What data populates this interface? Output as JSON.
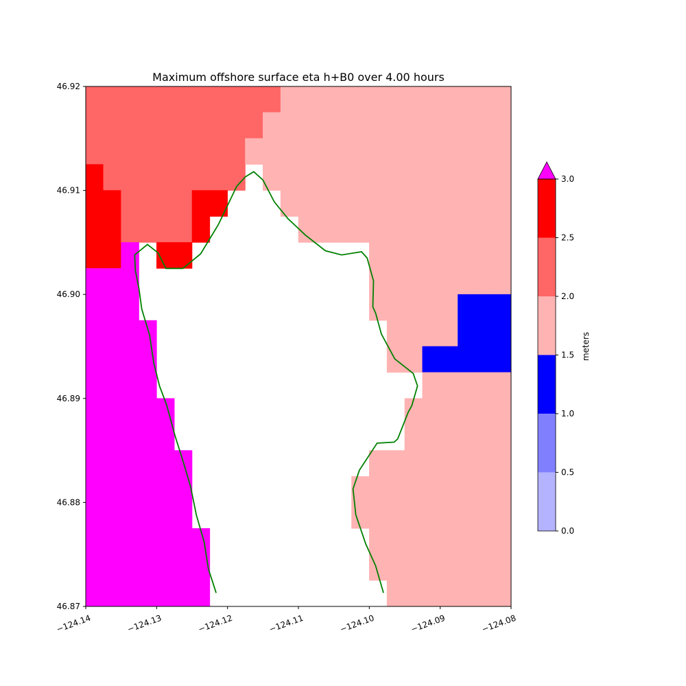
{
  "chart_data": {
    "type": "heatmap",
    "title": "Maximum offshore surface eta h+B0 over 4.00 hours",
    "xlabel": "",
    "ylabel": "",
    "xlim": [
      -124.14,
      -124.08
    ],
    "ylim": [
      46.87,
      46.92
    ],
    "xticks": [
      -124.14,
      -124.13,
      -124.12,
      -124.11,
      -124.1,
      -124.09,
      -124.08
    ],
    "xtick_labels": [
      "−124.14",
      "−124.13",
      "−124.12",
      "−124.11",
      "−124.10",
      "−124.09",
      "−124.08"
    ],
    "yticks": [
      46.87,
      46.88,
      46.89,
      46.9,
      46.91,
      46.92
    ],
    "ytick_labels": [
      "46.87",
      "46.88",
      "46.89",
      "46.90",
      "46.91",
      "46.92"
    ],
    "grid": false,
    "cell_size_deg": 0.0025,
    "grid_columns": 24,
    "grid_rows_top_to_bottom": [
      "LLLLLLLLLLLPPPPPPPPPPPPP",
      "LLLLLLLLLLPPPPPPPPPPPPPP",
      "LLLLLLLLLPPPPPPPPPPPPPPP",
      "RLLLLLLLLWPPPPPPPPPPPPPP",
      "RRLLLLRRWWWPPPPPPPPPPPPP",
      "RRLLLLRWWWWWPPPPPPPPPPPP",
      "RRMWRRWWWWWWWWWWPPPPPPPP",
      "MMMWWWWWWWWWWWWWPPPPPPPP",
      "MMMWWWWWWWWWWWWWPPPPPBBB",
      "MMMMWWWWWWWWWWWWWPPPPBBB",
      "MMMMWWWWWWWWWWWWWPPBBBBB",
      "MMMMWWWWWWWWWWWWWWWPPPPP",
      "MMMMMWWWWWWWWWWWWWPPPPPP",
      "MMMMMWWWWWWWWWWWWWPPPPPP",
      "MMMMMMWWWWWWWWWWPPPPPPPP",
      "MMMMMMWWWWWWWWWPPPPPPPPP",
      "MMMMMMWWWWWWWWWPPPPPPPPP",
      "MMMMMMMWWWWWWWWWPPPPPPPP",
      "MMMMMMMWWWWWWWWWPPPPPPPP",
      "MMMMMMMWWWWWWWWWWPPPPPPP"
    ],
    "category_legend": {
      "P": "1.5-2.0",
      "L": "2.0-2.5",
      "R": "2.5-3.0",
      "B": "1.0-1.5",
      "M": ">3.0",
      "W": "no data"
    },
    "category_colors": {
      "P": "#ffb3b3",
      "L": "#ff6666",
      "R": "#ff0000",
      "B": "#0000ff",
      "M": "#ff00ff",
      "W": "#ffffff"
    },
    "colorbar": {
      "label": "meters",
      "levels": [
        0.0,
        0.5,
        1.0,
        1.5,
        2.0,
        2.5,
        3.0
      ],
      "tick_labels": [
        "0.0",
        "0.5",
        "1.0",
        "1.5",
        "2.0",
        "2.5",
        "3.0"
      ],
      "colors": [
        "#b3b3ff",
        "#8080ff",
        "#0000ff",
        "#ffb3b3",
        "#ff6666",
        "#ff0000"
      ],
      "extend_max_color": "#ff00ff"
    },
    "coastline": {
      "color": "#008000",
      "lonlat": [
        [
          -124.1216,
          46.8713
        ],
        [
          -124.1227,
          46.8736
        ],
        [
          -124.1233,
          46.8762
        ],
        [
          -124.1244,
          46.8788
        ],
        [
          -124.1252,
          46.8815
        ],
        [
          -124.1262,
          46.8838
        ],
        [
          -124.1274,
          46.8864
        ],
        [
          -124.1286,
          46.8894
        ],
        [
          -124.1296,
          46.8912
        ],
        [
          -124.1304,
          46.8934
        ],
        [
          -124.131,
          46.8961
        ],
        [
          -124.1321,
          46.8986
        ],
        [
          -124.1325,
          46.9006
        ],
        [
          -124.133,
          46.9023
        ],
        [
          -124.1331,
          46.9038
        ],
        [
          -124.1313,
          46.9048
        ],
        [
          -124.1298,
          46.904
        ],
        [
          -124.1287,
          46.9025
        ],
        [
          -124.1263,
          46.9025
        ],
        [
          -124.1238,
          46.9039
        ],
        [
          -124.1213,
          46.9067
        ],
        [
          -124.1187,
          46.9104
        ],
        [
          -124.1175,
          46.9113
        ],
        [
          -124.1163,
          46.9118
        ],
        [
          -124.115,
          46.911
        ],
        [
          -124.1134,
          46.9089
        ],
        [
          -124.1115,
          46.9073
        ],
        [
          -124.109,
          46.9057
        ],
        [
          -124.1062,
          46.9042
        ],
        [
          -124.1039,
          46.9038
        ],
        [
          -124.1011,
          46.9041
        ],
        [
          -124.1003,
          46.9035
        ],
        [
          -124.0994,
          46.9013
        ],
        [
          -124.0995,
          46.8988
        ],
        [
          -124.0991,
          46.8982
        ],
        [
          -124.0983,
          46.8962
        ],
        [
          -124.0964,
          46.8938
        ],
        [
          -124.0938,
          46.8924
        ],
        [
          -124.0932,
          46.8912
        ],
        [
          -124.094,
          46.8893
        ],
        [
          -124.0945,
          46.8887
        ],
        [
          -124.096,
          46.8861
        ],
        [
          -124.0965,
          46.8858
        ],
        [
          -124.0989,
          46.8857
        ],
        [
          -124.1014,
          46.8831
        ],
        [
          -124.1023,
          46.8813
        ],
        [
          -124.1019,
          46.8788
        ],
        [
          -124.1005,
          46.876
        ],
        [
          -124.0991,
          46.8739
        ],
        [
          -124.098,
          46.8713
        ]
      ]
    }
  }
}
